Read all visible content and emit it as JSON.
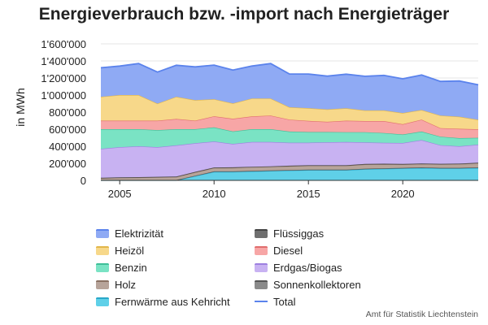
{
  "chart_data": {
    "type": "area",
    "stacked": true,
    "title": "Energieverbrauch bzw. -import nach Energieträger",
    "ylabel": "in MWh",
    "xlabel": "",
    "ylim": [
      0,
      1600000
    ],
    "xlim": [
      2004,
      2024
    ],
    "grid": true,
    "legend_position": "bottom",
    "y_ticks": [
      {
        "value": 0,
        "label": "0"
      },
      {
        "value": 200000,
        "label": "200'000"
      },
      {
        "value": 400000,
        "label": "400'000"
      },
      {
        "value": 600000,
        "label": "600'000"
      },
      {
        "value": 800000,
        "label": "800'000"
      },
      {
        "value": 1000000,
        "label": "1'000'000"
      },
      {
        "value": 1200000,
        "label": "1'200'000"
      },
      {
        "value": 1400000,
        "label": "1'400'000"
      },
      {
        "value": 1600000,
        "label": "1'600'000"
      }
    ],
    "x_ticks": [
      {
        "value": 2005,
        "label": "2005"
      },
      {
        "value": 2010,
        "label": "2010"
      },
      {
        "value": 2015,
        "label": "2015"
      },
      {
        "value": 2020,
        "label": "2020"
      }
    ],
    "x": [
      2004,
      2005,
      2006,
      2007,
      2008,
      2009,
      2010,
      2011,
      2012,
      2013,
      2014,
      2015,
      2016,
      2017,
      2018,
      2019,
      2020,
      2021,
      2022,
      2023,
      2024
    ],
    "series": [
      {
        "name": "Fernwärme aus Kehricht",
        "color": "#5fd0e8",
        "edge": "#2aa7c9",
        "values": [
          0,
          0,
          0,
          0,
          0,
          50000,
          100000,
          100000,
          105000,
          110000,
          115000,
          120000,
          120000,
          120000,
          130000,
          135000,
          140000,
          145000,
          140000,
          140000,
          145000
        ]
      },
      {
        "name": "Sonnenkollektoren",
        "color": "#8a8a8a",
        "edge": "#555555",
        "values": [
          5000,
          5000,
          5000,
          5000,
          5000,
          5000,
          6000,
          6000,
          6000,
          6000,
          6000,
          6000,
          6000,
          6000,
          7000,
          7000,
          7000,
          7000,
          7000,
          7000,
          7000
        ]
      },
      {
        "name": "Holz",
        "color": "#b7a49a",
        "edge": "#8a7163",
        "values": [
          20000,
          25000,
          28000,
          32000,
          35000,
          40000,
          40000,
          42000,
          44000,
          44000,
          46000,
          46000,
          46000,
          46000,
          50000,
          48000,
          40000,
          40000,
          42000,
          44000,
          50000
        ]
      },
      {
        "name": "Flüssiggas",
        "color": "#6f6f6f",
        "edge": "#444444",
        "values": [
          5000,
          5000,
          5000,
          5000,
          5000,
          5000,
          5000,
          5000,
          5000,
          5000,
          5000,
          5000,
          5000,
          5000,
          5000,
          5000,
          5000,
          5000,
          5000,
          5000,
          5000
        ]
      },
      {
        "name": "Erdgas/Biogas",
        "color": "#c8b2f2",
        "edge": "#9d80e0",
        "values": [
          340000,
          355000,
          362000,
          348000,
          365000,
          335000,
          305000,
          275000,
          290000,
          285000,
          270000,
          265000,
          270000,
          273000,
          253000,
          245000,
          246000,
          275000,
          218000,
          204000,
          212000
        ]
      },
      {
        "name": "Benzin",
        "color": "#7ae3c4",
        "edge": "#3fbf98",
        "values": [
          230000,
          210000,
          200000,
          200000,
          190000,
          165000,
          165000,
          145000,
          150000,
          150000,
          130000,
          125000,
          120000,
          115000,
          120000,
          115000,
          100000,
          100000,
          100000,
          95000,
          80000
        ]
      },
      {
        "name": "Diesel",
        "color": "#f7a6a6",
        "edge": "#e06d6d",
        "values": [
          100000,
          100000,
          100000,
          110000,
          120000,
          100000,
          130000,
          150000,
          150000,
          160000,
          140000,
          130000,
          120000,
          135000,
          130000,
          140000,
          120000,
          140000,
          100000,
          110000,
          100000
        ]
      },
      {
        "name": "Heizöl",
        "color": "#f7d88a",
        "edge": "#e2b64a",
        "values": [
          280000,
          300000,
          300000,
          200000,
          260000,
          240000,
          200000,
          180000,
          210000,
          200000,
          145000,
          150000,
          145000,
          145000,
          125000,
          125000,
          132000,
          113000,
          148000,
          142000,
          111000
        ]
      },
      {
        "name": "Elektrizität",
        "color": "#8faaf4",
        "edge": "#5b83ec",
        "values": [
          340000,
          340000,
          370000,
          370000,
          370000,
          390000,
          400000,
          390000,
          380000,
          410000,
          390000,
          400000,
          390000,
          400000,
          400000,
          410000,
          400000,
          410000,
          400000,
          418000,
          410000
        ]
      },
      {
        "name": "Total",
        "color": "#5b83ec",
        "edge": "#5b83ec",
        "is_total": true,
        "values": [
          1320000,
          1340000,
          1370000,
          1270000,
          1350000,
          1330000,
          1351000,
          1293000,
          1340000,
          1370000,
          1247000,
          1247000,
          1222000,
          1245000,
          1220000,
          1230000,
          1190000,
          1235000,
          1160000,
          1165000,
          1120000
        ]
      }
    ]
  },
  "legend": {
    "items": [
      {
        "label": "Elektrizität"
      },
      {
        "label": "Flüssiggas"
      },
      {
        "label": "Heizöl"
      },
      {
        "label": "Diesel"
      },
      {
        "label": "Benzin"
      },
      {
        "label": "Erdgas/Biogas"
      },
      {
        "label": "Holz"
      },
      {
        "label": "Sonnenkollektoren"
      },
      {
        "label": "Fernwärme aus Kehricht"
      },
      {
        "label": "Total"
      }
    ]
  },
  "source": "Amt für Statistik Liechtenstein"
}
